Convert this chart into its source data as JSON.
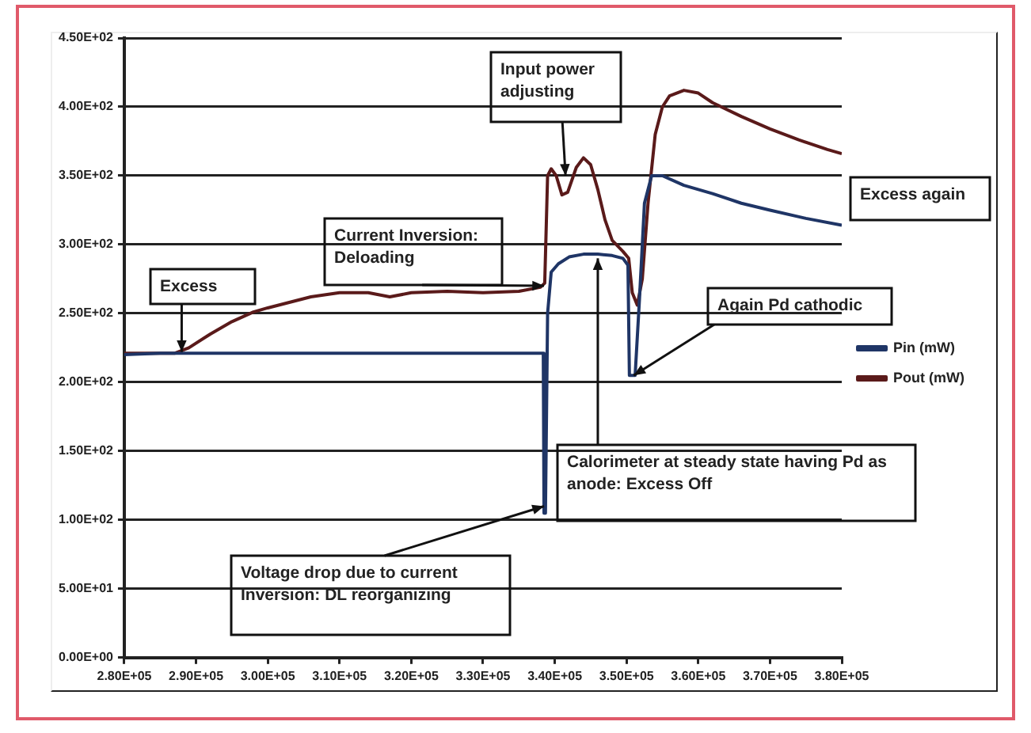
{
  "chart_data": {
    "type": "line",
    "series": [
      {
        "name": "Pin (mW)",
        "color": "#1f3566",
        "x": [
          280000,
          285000,
          290000,
          300000,
          310000,
          320000,
          330000,
          338400,
          338500,
          338700,
          339000,
          339500,
          340500,
          342000,
          344000,
          346000,
          348000,
          349500,
          350200,
          350400,
          351200,
          351800,
          352500,
          353500,
          355000,
          358000,
          362000,
          366000,
          370000,
          375000,
          380000
        ],
        "values": [
          220,
          221,
          221,
          221,
          221,
          221,
          221,
          221,
          105,
          105,
          250,
          280,
          286,
          291,
          293,
          293,
          292,
          290,
          285,
          205,
          205,
          260,
          330,
          350,
          350,
          343,
          337,
          330,
          325,
          319,
          314
        ]
      },
      {
        "name": "Pout (mW)",
        "color": "#5a1a1a",
        "x": [
          280000,
          287000,
          289000,
          292000,
          295000,
          298000,
          300000,
          303000,
          306000,
          310000,
          314000,
          317000,
          320000,
          325000,
          330000,
          335000,
          338000,
          338600,
          339000,
          339500,
          340200,
          341000,
          341800,
          343000,
          344000,
          345000,
          346000,
          347000,
          348000,
          349500,
          350300,
          350800,
          351500,
          352200,
          353000,
          354000,
          355000,
          356000,
          358000,
          360000,
          362000,
          366000,
          370000,
          374000,
          378000,
          380000
        ],
        "values": [
          221,
          221,
          225,
          235,
          244,
          251,
          254,
          258,
          262,
          265,
          265,
          262,
          265,
          266,
          265,
          266,
          269,
          272,
          350,
          355,
          350,
          336,
          338,
          356,
          363,
          358,
          340,
          318,
          303,
          295,
          290,
          265,
          256,
          275,
          330,
          380,
          400,
          408,
          412,
          410,
          403,
          393,
          384,
          376,
          369,
          366
        ]
      }
    ],
    "xlim": [
      280000,
      380000
    ],
    "xticks": [
      {
        "value": 280000,
        "label": "2.80E+05"
      },
      {
        "value": 290000,
        "label": "2.90E+05"
      },
      {
        "value": 300000,
        "label": "3.00E+05"
      },
      {
        "value": 310000,
        "label": "3.10E+05"
      },
      {
        "value": 320000,
        "label": "3.20E+05"
      },
      {
        "value": 330000,
        "label": "3.30E+05"
      },
      {
        "value": 340000,
        "label": "3.40E+05"
      },
      {
        "value": 350000,
        "label": "3.50E+05"
      },
      {
        "value": 360000,
        "label": "3.60E+05"
      },
      {
        "value": 370000,
        "label": "3.70E+05"
      },
      {
        "value": 380000,
        "label": "3.80E+05"
      }
    ],
    "ylim": [
      0,
      450
    ],
    "yticks": [
      {
        "value": 0,
        "label": "0.00E+00"
      },
      {
        "value": 50,
        "label": "5.00E+01"
      },
      {
        "value": 100,
        "label": "1.00E+02"
      },
      {
        "value": 150,
        "label": "1.50E+02"
      },
      {
        "value": 200,
        "label": "2.00E+02"
      },
      {
        "value": 250,
        "label": "2.50E+02"
      },
      {
        "value": 300,
        "label": "3.00E+02"
      },
      {
        "value": 350,
        "label": "3.50E+02"
      },
      {
        "value": 400,
        "label": "4.00E+02"
      },
      {
        "value": 450,
        "label": "4.50E+02"
      }
    ],
    "grid": "y",
    "legend": "right",
    "marker": "none",
    "line_style": "solid",
    "annotations": [
      {
        "text": "Excess",
        "x": 288000,
        "y": 222
      },
      {
        "text": "Current Inversion: Deloading",
        "x": 338500,
        "y": 270
      },
      {
        "text": "Input power adjusting",
        "x": 341500,
        "y": 350
      },
      "Excess again",
      {
        "text": "Again Pd cathodic",
        "x": 351000,
        "y": 205
      },
      {
        "text": "Calorimeter at steady state having Pd as anode: Excess Off",
        "x": 346000,
        "y": 290
      },
      {
        "text": "Voltage drop due to current Inversion: DL reorganizing",
        "x": 338500,
        "y": 110
      }
    ]
  }
}
